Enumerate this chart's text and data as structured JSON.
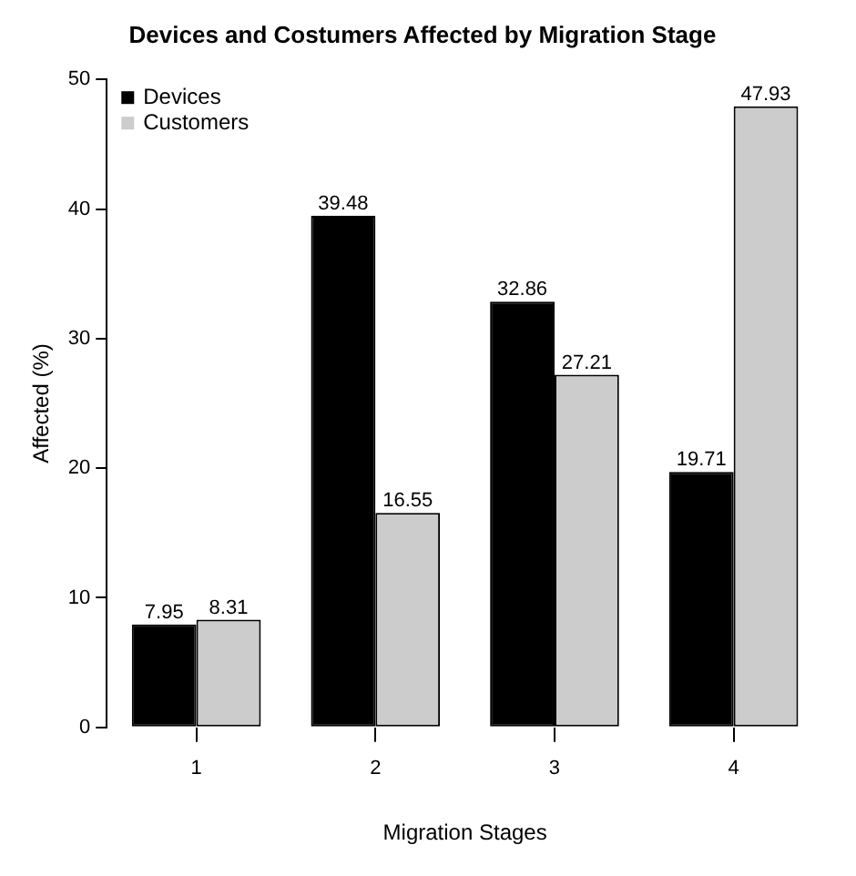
{
  "chart_data": {
    "type": "bar",
    "title": "Devices and Costumers Affected by Migration Stage",
    "xlabel": "Migration Stages",
    "ylabel": "Affected (%)",
    "categories": [
      "1",
      "2",
      "3",
      "4"
    ],
    "series": [
      {
        "name": "Devices",
        "color": "#000000",
        "values": [
          7.95,
          39.48,
          32.86,
          19.71
        ]
      },
      {
        "name": "Customers",
        "color": "#cccccc",
        "values": [
          8.31,
          16.55,
          27.21,
          47.93
        ]
      }
    ],
    "ylim": [
      0,
      50
    ],
    "yticks": [
      0,
      10,
      20,
      30,
      40,
      50
    ],
    "grid": false,
    "legend": "top left",
    "data_labels": true
  }
}
